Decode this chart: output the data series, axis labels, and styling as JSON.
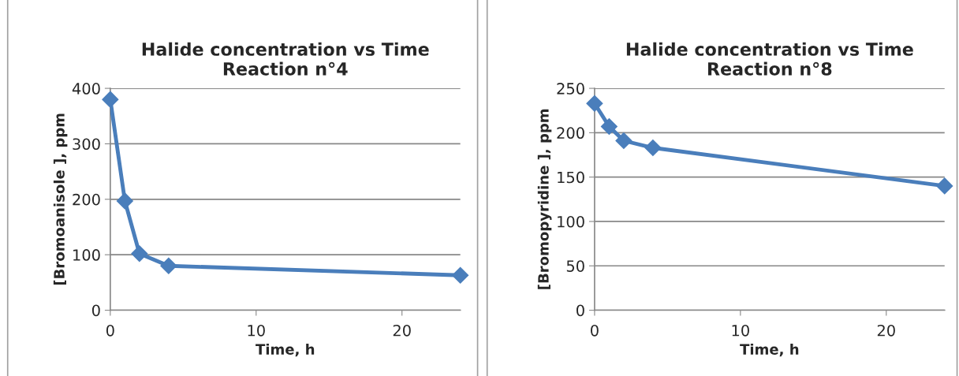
{
  "chart_data": [
    {
      "type": "line",
      "title": "Halide concentration vs Time\nReaction n°4",
      "xlabel": "Time, h",
      "ylabel": "[Bromoanisole ], ppm",
      "x": [
        0,
        1,
        2,
        4,
        24
      ],
      "series": [
        {
          "color": "#4a7ebb",
          "values": [
            380,
            197,
            102,
            80,
            63
          ]
        }
      ],
      "xlim": [
        0,
        24
      ],
      "xticks": [
        0,
        10,
        20
      ],
      "ylim": [
        0,
        400
      ],
      "yticks": [
        0,
        100,
        200,
        300,
        400
      ],
      "grid": "y",
      "marker": "diamond",
      "line_style": "solid"
    },
    {
      "type": "line",
      "title": "Halide concentration vs Time\nReaction n°8",
      "xlabel": "Time, h",
      "ylabel": "[Bromopyridine ], ppm",
      "x": [
        0,
        1,
        2,
        4,
        24
      ],
      "series": [
        {
          "color": "#4a7ebb",
          "values": [
            233,
            207,
            191,
            183,
            140
          ]
        }
      ],
      "xlim": [
        0,
        24
      ],
      "xticks": [
        0,
        10,
        20
      ],
      "ylim": [
        0,
        250
      ],
      "yticks": [
        0,
        50,
        100,
        150,
        200,
        250
      ],
      "grid": "y",
      "marker": "diamond",
      "line_style": "solid"
    }
  ]
}
